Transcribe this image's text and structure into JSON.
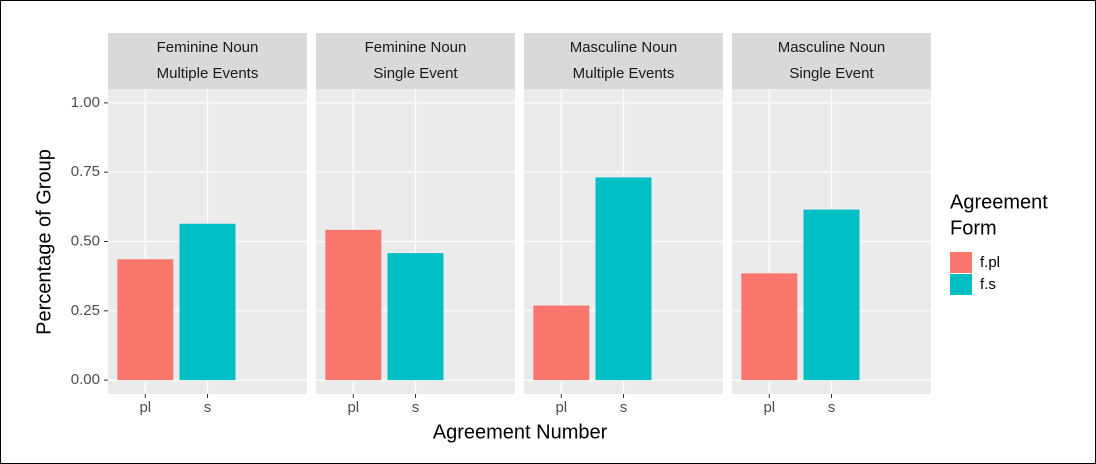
{
  "chart_data": {
    "type": "bar",
    "ylabel": "Percentage of Group",
    "xlabel": "Agreement Number",
    "legend_title": [
      "Agreement",
      "Form"
    ],
    "series": [
      {
        "name": "f.pl",
        "color": "#f8766d"
      },
      {
        "name": "f.s",
        "color": "#00bfc4"
      }
    ],
    "ylim": [
      -0.05,
      1.05
    ],
    "yticks": [
      {
        "value": 0,
        "label": "0.00"
      },
      {
        "value": 0.25,
        "label": "0.25"
      },
      {
        "value": 0.5,
        "label": "0.50"
      },
      {
        "value": 0.75,
        "label": "0.75"
      },
      {
        "value": 1,
        "label": "1.00"
      }
    ],
    "grid": true,
    "facets": [
      {
        "title": [
          "Feminine Noun",
          "Multiple Events"
        ],
        "categories": [
          "pl",
          "s"
        ],
        "values": [
          0.436,
          0.564
        ]
      },
      {
        "title": [
          "Feminine Noun",
          "Single Event"
        ],
        "categories": [
          "pl",
          "s"
        ],
        "values": [
          0.542,
          0.458
        ]
      },
      {
        "title": [
          "Masculine Noun",
          "Multiple Events"
        ],
        "categories": [
          "pl",
          "s"
        ],
        "values": [
          0.269,
          0.731
        ]
      },
      {
        "title": [
          "Masculine Noun",
          "Single Event"
        ],
        "categories": [
          "pl",
          "s"
        ],
        "values": [
          0.385,
          0.615
        ]
      }
    ]
  }
}
